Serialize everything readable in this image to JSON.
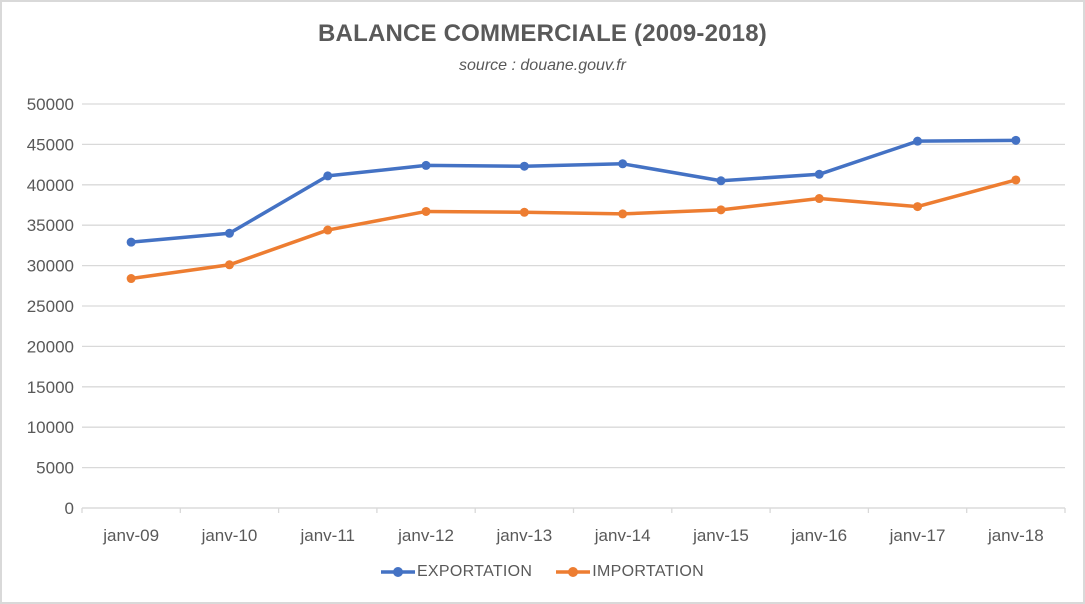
{
  "chart": {
    "title": "BALANCE COMMERCIALE (2009-2018)",
    "subtitle": "source : douane.gouv.fr"
  },
  "chart_data": {
    "type": "line",
    "categories": [
      "janv-09",
      "janv-10",
      "janv-11",
      "janv-12",
      "janv-13",
      "janv-14",
      "janv-15",
      "janv-16",
      "janv-17",
      "janv-18"
    ],
    "series": [
      {
        "name": "EXPORTATION",
        "color": "#4472C4",
        "values": [
          32900,
          34000,
          41100,
          42400,
          42300,
          42600,
          40500,
          41300,
          45400,
          45500
        ]
      },
      {
        "name": "IMPORTATION",
        "color": "#ED7D31",
        "values": [
          28400,
          30100,
          34400,
          36700,
          36600,
          36400,
          36900,
          38300,
          37300,
          40600
        ]
      }
    ],
    "ylim": [
      0,
      50000
    ],
    "ytick_step": 5000,
    "ytick_labels": [
      "0",
      "5000",
      "10000",
      "15000",
      "20000",
      "25000",
      "30000",
      "35000",
      "40000",
      "45000",
      "50000"
    ],
    "grid": true,
    "legend_position": "bottom",
    "colors": {
      "text": "#595959",
      "gridline": "#D9D9D9",
      "axis_line": "#D9D9D9"
    }
  }
}
